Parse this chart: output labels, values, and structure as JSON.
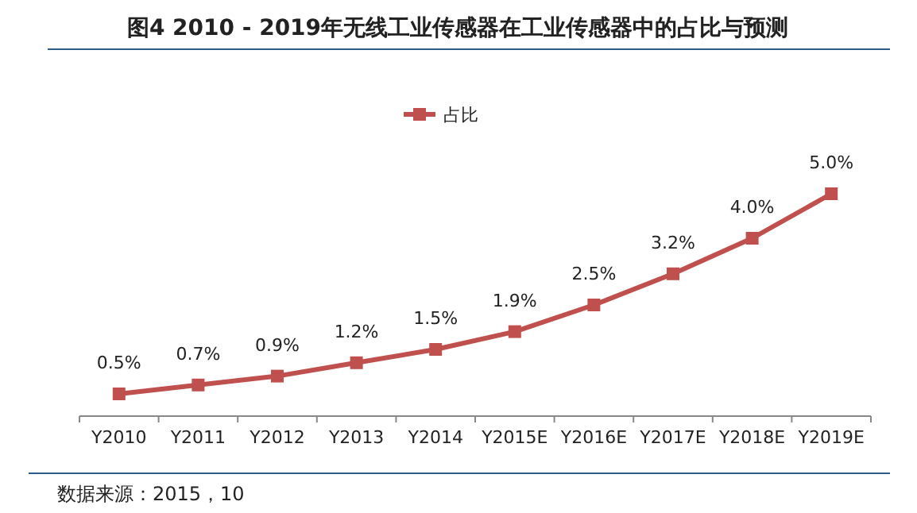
{
  "chart_data": {
    "type": "line",
    "title": "图4 2010 - 2019年无线工业传感器在工业传感器中的占比与预测",
    "categories": [
      "Y2010",
      "Y2011",
      "Y2012",
      "Y2013",
      "Y2014",
      "Y2015E",
      "Y2016E",
      "Y2017E",
      "Y2018E",
      "Y2019E"
    ],
    "series": [
      {
        "name": "占比",
        "color": "#c0504d",
        "values": [
          0.5,
          0.7,
          0.9,
          1.2,
          1.5,
          1.9,
          2.5,
          3.2,
          4.0,
          5.0
        ],
        "value_labels": [
          "0.5%",
          "0.7%",
          "0.9%",
          "1.2%",
          "1.5%",
          "1.9%",
          "2.5%",
          "3.2%",
          "4.0%",
          "5.0%"
        ]
      }
    ],
    "marker": "square",
    "legend": "top",
    "annotations": [
      "数据来源：2015，10"
    ]
  }
}
